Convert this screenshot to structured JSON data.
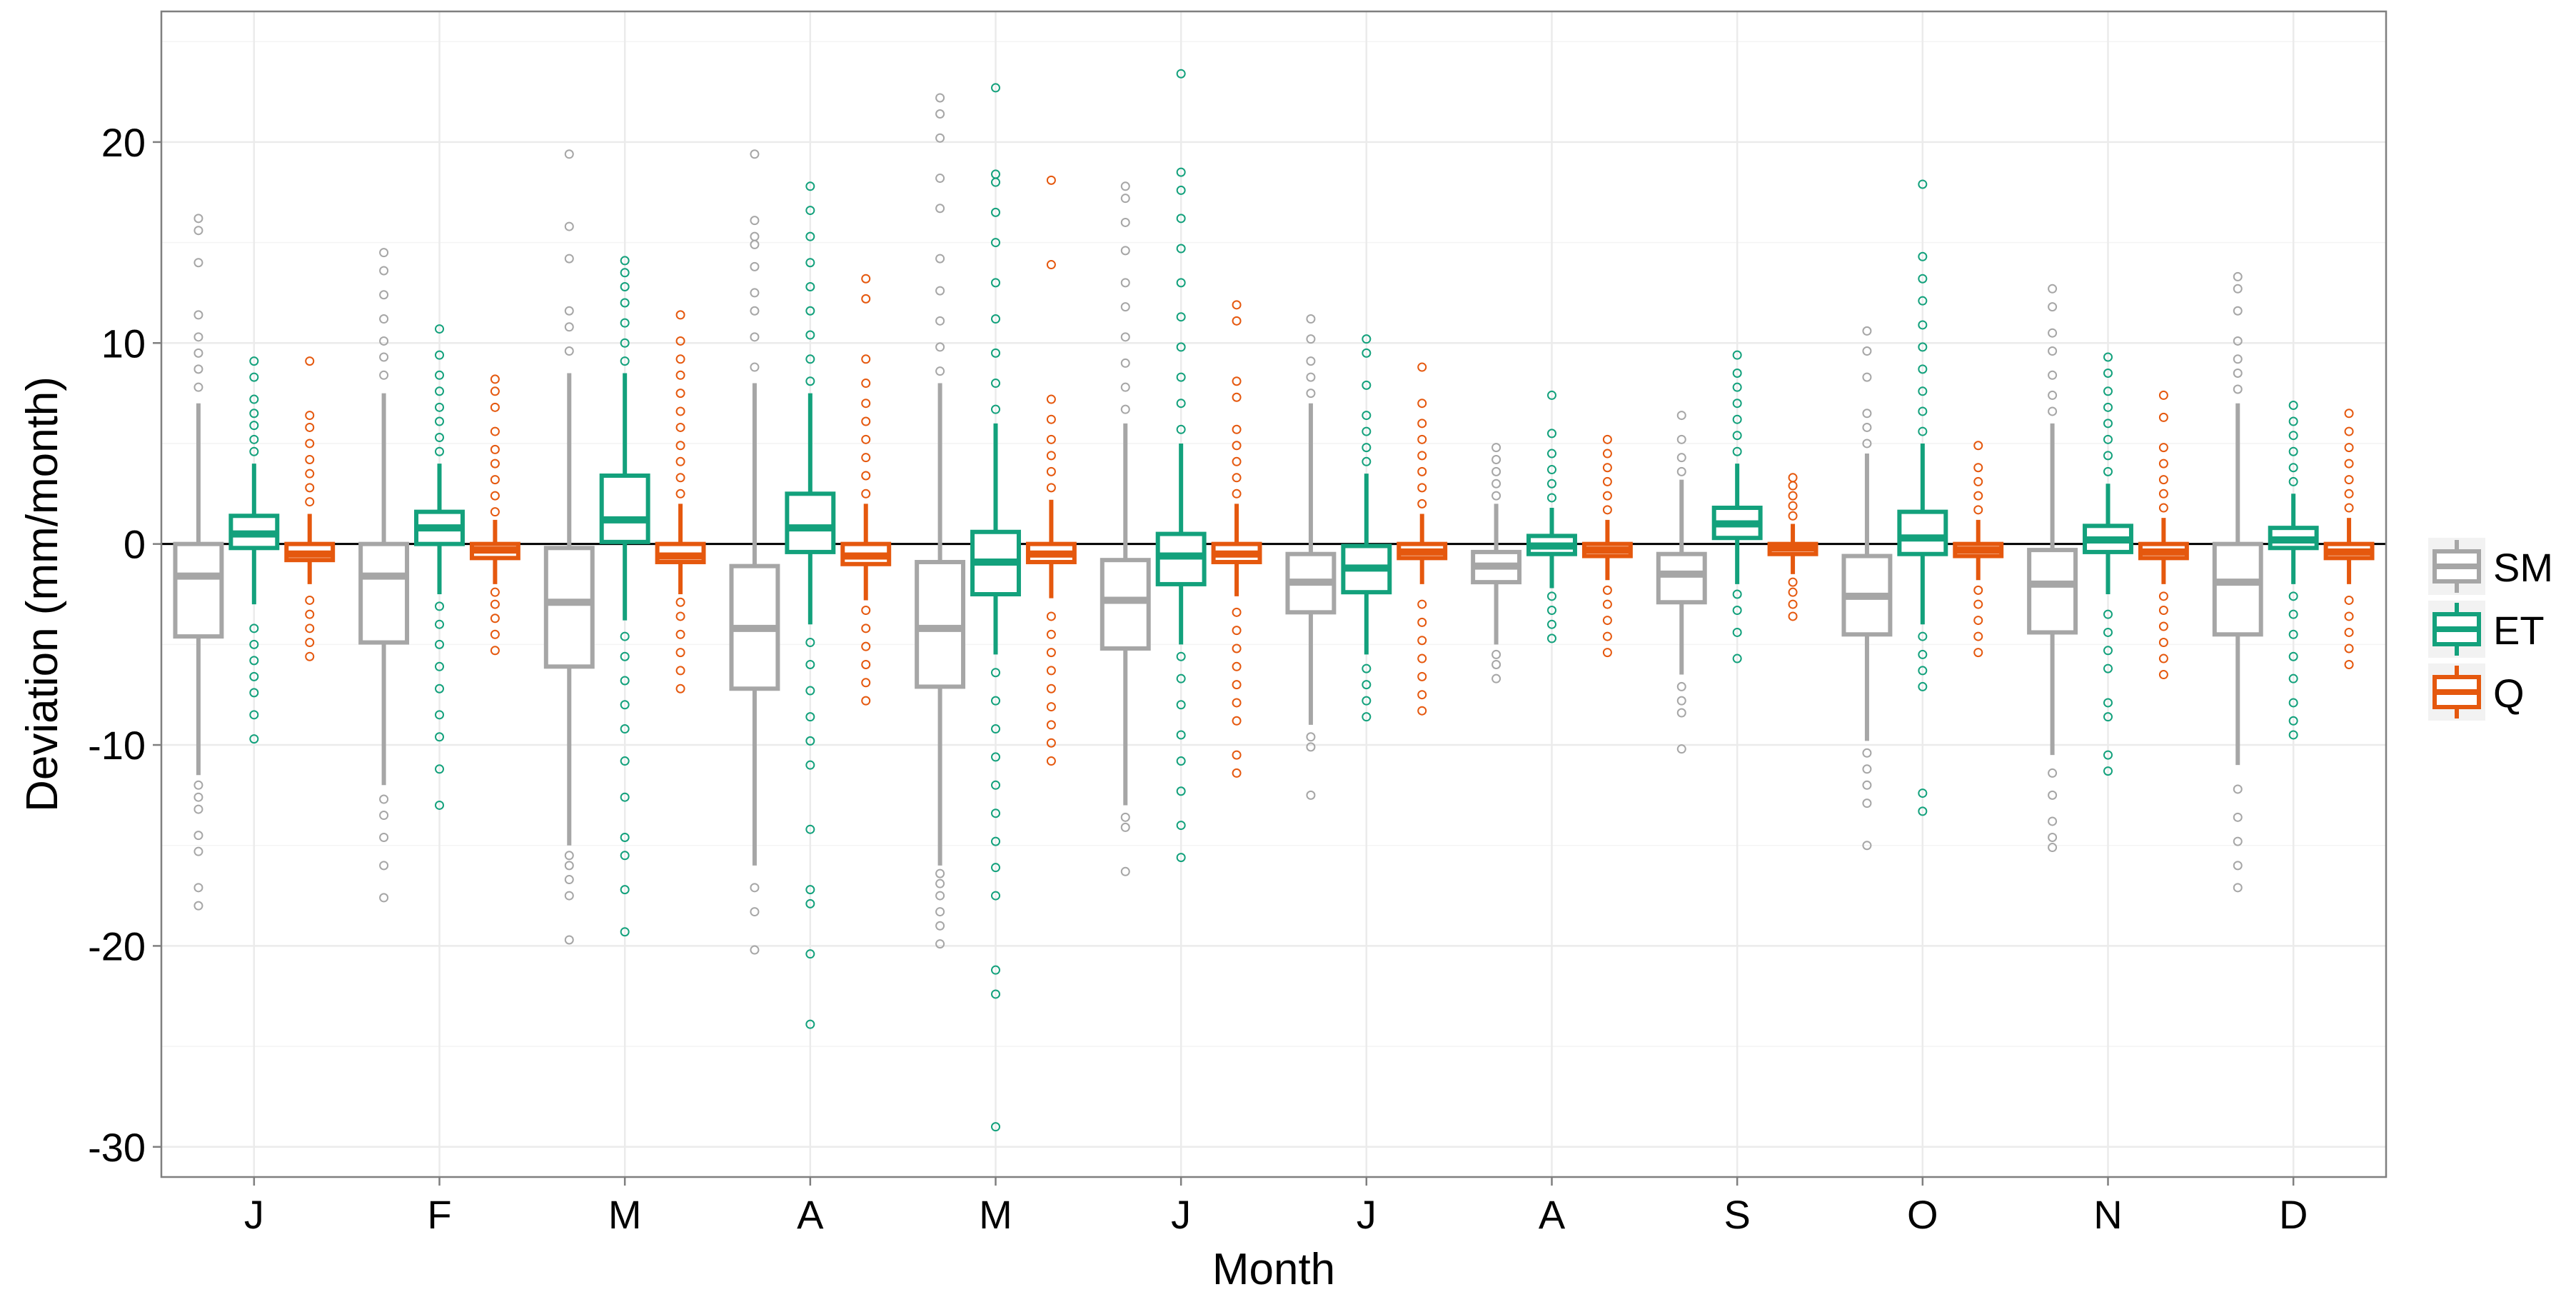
{
  "chart_data": {
    "type": "boxplot",
    "title": "",
    "xlabel": "Month",
    "ylabel": "Deviation (mm/month)",
    "ylim": [
      -31.5,
      26.5
    ],
    "yticks": [
      -30,
      -20,
      -10,
      0,
      10,
      20
    ],
    "ytick_labels": [
      "-30",
      "-20",
      "-10",
      "0",
      "10",
      "20"
    ],
    "grid": true,
    "reference_line_y": 0,
    "legend_position": "right",
    "categories": [
      "J",
      "F",
      "M",
      "A",
      "M",
      "J",
      "J",
      "A",
      "S",
      "O",
      "N",
      "D"
    ],
    "series": [
      {
        "name": "SM",
        "color": "#a6a6a6",
        "boxes": [
          {
            "q1": -4.6,
            "median": -1.6,
            "q3": 0.0,
            "whisker_low": -11.5,
            "whisker_high": 7.0,
            "outliers": [
              -18.0,
              -17.1,
              -15.3,
              -14.5,
              -13.2,
              -12.6,
              -12.0,
              7.8,
              8.7,
              9.5,
              10.3,
              11.4,
              14.0,
              15.6,
              16.2
            ]
          },
          {
            "q1": -4.9,
            "median": -1.6,
            "q3": 0.0,
            "whisker_low": -12.0,
            "whisker_high": 7.5,
            "outliers": [
              -17.6,
              -16.0,
              -14.6,
              -13.5,
              -12.7,
              8.4,
              9.3,
              10.1,
              11.2,
              12.4,
              13.6,
              14.5
            ]
          },
          {
            "q1": -6.1,
            "median": -2.9,
            "q3": -0.2,
            "whisker_low": -15.0,
            "whisker_high": 8.5,
            "outliers": [
              -19.7,
              -17.5,
              -16.7,
              -16.0,
              -15.5,
              9.6,
              10.8,
              11.6,
              14.2,
              15.8,
              19.4
            ]
          },
          {
            "q1": -7.2,
            "median": -4.2,
            "q3": -1.1,
            "whisker_low": -16.0,
            "whisker_high": 8.0,
            "outliers": [
              -20.2,
              -18.3,
              -17.1,
              8.8,
              10.3,
              11.6,
              12.5,
              13.8,
              14.9,
              15.3,
              16.1,
              19.4
            ]
          },
          {
            "q1": -7.1,
            "median": -4.2,
            "q3": -0.9,
            "whisker_low": -16.0,
            "whisker_high": 8.0,
            "outliers": [
              -19.9,
              -19.0,
              -18.3,
              -17.5,
              -16.9,
              -16.4,
              8.6,
              9.8,
              11.1,
              12.6,
              14.2,
              16.7,
              18.2,
              20.2,
              21.4,
              22.2
            ]
          },
          {
            "q1": -5.2,
            "median": -2.8,
            "q3": -0.8,
            "whisker_low": -13.0,
            "whisker_high": 6.0,
            "outliers": [
              -16.3,
              -14.1,
              -13.6,
              6.7,
              7.8,
              9.0,
              10.3,
              11.8,
              13.0,
              14.6,
              16.0,
              17.2,
              17.8
            ]
          },
          {
            "q1": -3.4,
            "median": -1.9,
            "q3": -0.5,
            "whisker_low": -9.0,
            "whisker_high": 7.0,
            "outliers": [
              -12.5,
              -10.1,
              -9.6,
              7.5,
              8.3,
              9.1,
              10.2,
              11.2
            ]
          },
          {
            "q1": -1.9,
            "median": -1.1,
            "q3": -0.4,
            "whisker_low": -5.0,
            "whisker_high": 2.0,
            "outliers": [
              -6.7,
              -6.0,
              -5.5,
              2.4,
              3.0,
              3.6,
              4.2,
              4.8
            ]
          },
          {
            "q1": -2.9,
            "median": -1.5,
            "q3": -0.5,
            "whisker_low": -6.5,
            "whisker_high": 3.2,
            "outliers": [
              -10.2,
              -8.4,
              -7.8,
              -7.1,
              3.6,
              4.3,
              5.2,
              6.4
            ]
          },
          {
            "q1": -4.5,
            "median": -2.6,
            "q3": -0.6,
            "whisker_low": -9.8,
            "whisker_high": 4.5,
            "outliers": [
              -15.0,
              -12.9,
              -12.0,
              -11.2,
              -10.4,
              5.0,
              5.8,
              6.5,
              8.3,
              9.6,
              10.6
            ]
          },
          {
            "q1": -4.4,
            "median": -2.0,
            "q3": -0.3,
            "whisker_low": -10.5,
            "whisker_high": 6.0,
            "outliers": [
              -15.1,
              -14.6,
              -13.8,
              -12.5,
              -11.4,
              6.6,
              7.4,
              8.4,
              9.6,
              10.5,
              11.8,
              12.7
            ]
          },
          {
            "q1": -4.5,
            "median": -1.9,
            "q3": 0.0,
            "whisker_low": -11.0,
            "whisker_high": 7.0,
            "outliers": [
              -17.1,
              -16.0,
              -14.8,
              -13.6,
              -12.2,
              7.7,
              8.5,
              9.2,
              10.1,
              11.6,
              12.7,
              13.3
            ]
          }
        ]
      },
      {
        "name": "ET",
        "color": "#13a17c",
        "boxes": [
          {
            "q1": -0.2,
            "median": 0.5,
            "q3": 1.4,
            "whisker_low": -3.0,
            "whisker_high": 4.0,
            "outliers": [
              -9.7,
              -8.5,
              -7.4,
              -6.6,
              -5.8,
              -5.0,
              -4.2,
              4.6,
              5.2,
              5.9,
              6.5,
              7.2,
              8.3,
              9.1
            ]
          },
          {
            "q1": 0.0,
            "median": 0.8,
            "q3": 1.6,
            "whisker_low": -2.5,
            "whisker_high": 4.0,
            "outliers": [
              -13.0,
              -11.2,
              -9.6,
              -8.5,
              -7.2,
              -6.1,
              -5.0,
              -4.0,
              -3.1,
              4.6,
              5.3,
              6.1,
              6.8,
              7.6,
              8.4,
              9.4,
              10.7
            ]
          },
          {
            "q1": 0.1,
            "median": 1.2,
            "q3": 3.4,
            "whisker_low": -3.8,
            "whisker_high": 8.5,
            "outliers": [
              -19.3,
              -17.2,
              -15.5,
              -14.6,
              -12.6,
              -10.8,
              -9.2,
              -8.0,
              -6.8,
              -5.6,
              -4.6,
              9.1,
              10.0,
              11.0,
              12.0,
              12.8,
              13.5,
              14.1
            ]
          },
          {
            "q1": -0.4,
            "median": 0.8,
            "q3": 2.5,
            "whisker_low": -4.0,
            "whisker_high": 7.5,
            "outliers": [
              -23.9,
              -20.4,
              -17.9,
              -17.2,
              -14.2,
              -11.0,
              -9.8,
              -8.6,
              -7.3,
              -6.0,
              -4.9,
              8.1,
              9.2,
              10.4,
              11.6,
              12.8,
              14.0,
              15.3,
              16.6,
              17.8
            ]
          },
          {
            "q1": -2.5,
            "median": -0.9,
            "q3": 0.6,
            "whisker_low": -5.5,
            "whisker_high": 6.0,
            "outliers": [
              -29.0,
              -22.4,
              -21.2,
              -17.5,
              -16.1,
              -14.8,
              -13.4,
              -12.0,
              -10.6,
              -9.2,
              -7.8,
              -6.4,
              6.7,
              8.0,
              9.5,
              11.2,
              13.0,
              15.0,
              16.5,
              18.0,
              18.4,
              22.7
            ]
          },
          {
            "q1": -2.0,
            "median": -0.6,
            "q3": 0.5,
            "whisker_low": -5.0,
            "whisker_high": 5.0,
            "outliers": [
              -15.6,
              -14.0,
              -12.3,
              -10.8,
              -9.5,
              -8.0,
              -6.7,
              -5.6,
              5.7,
              7.0,
              8.3,
              9.8,
              11.3,
              13.0,
              14.7,
              16.2,
              17.6,
              18.5,
              23.4
            ]
          },
          {
            "q1": -2.4,
            "median": -1.2,
            "q3": -0.1,
            "whisker_low": -5.5,
            "whisker_high": 3.5,
            "outliers": [
              -8.6,
              -7.8,
              -7.0,
              -6.2,
              4.1,
              4.8,
              5.6,
              6.4,
              7.9,
              9.5,
              10.2
            ]
          },
          {
            "q1": -0.5,
            "median": -0.1,
            "q3": 0.4,
            "whisker_low": -2.2,
            "whisker_high": 1.8,
            "outliers": [
              -4.7,
              -4.0,
              -3.3,
              -2.6,
              2.3,
              3.0,
              3.7,
              4.5,
              5.5,
              7.4
            ]
          },
          {
            "q1": 0.3,
            "median": 1.0,
            "q3": 1.8,
            "whisker_low": -2.0,
            "whisker_high": 4.0,
            "outliers": [
              -5.7,
              -4.4,
              -3.3,
              -2.5,
              4.6,
              5.4,
              6.2,
              7.0,
              7.8,
              8.5,
              9.4
            ]
          },
          {
            "q1": -0.5,
            "median": 0.3,
            "q3": 1.6,
            "whisker_low": -4.0,
            "whisker_high": 5.0,
            "outliers": [
              -13.3,
              -12.4,
              -7.1,
              -6.3,
              -5.5,
              -4.6,
              5.6,
              6.6,
              7.6,
              8.7,
              9.8,
              10.9,
              12.1,
              13.2,
              14.3,
              17.9
            ]
          },
          {
            "q1": -0.4,
            "median": 0.2,
            "q3": 0.9,
            "whisker_low": -2.5,
            "whisker_high": 3.0,
            "outliers": [
              -11.3,
              -10.5,
              -8.6,
              -7.9,
              -6.2,
              -5.3,
              -4.4,
              -3.5,
              3.6,
              4.4,
              5.2,
              6.0,
              6.8,
              7.6,
              8.5,
              9.3
            ]
          },
          {
            "q1": -0.2,
            "median": 0.2,
            "q3": 0.8,
            "whisker_low": -2.0,
            "whisker_high": 2.5,
            "outliers": [
              -9.5,
              -8.8,
              -7.9,
              -6.7,
              -5.6,
              -4.5,
              -3.5,
              -2.6,
              3.1,
              3.8,
              4.6,
              5.4,
              6.1,
              6.9
            ]
          }
        ]
      },
      {
        "name": "Q",
        "color": "#e5580e",
        "boxes": [
          {
            "q1": -0.8,
            "median": -0.5,
            "q3": 0.0,
            "whisker_low": -2.0,
            "whisker_high": 1.5,
            "outliers": [
              -5.6,
              -4.9,
              -4.2,
              -3.5,
              -2.8,
              2.1,
              2.8,
              3.5,
              4.2,
              5.0,
              5.8,
              6.4,
              9.1
            ]
          },
          {
            "q1": -0.7,
            "median": -0.3,
            "q3": 0.0,
            "whisker_low": -2.0,
            "whisker_high": 1.2,
            "outliers": [
              -5.3,
              -4.5,
              -3.7,
              -3.0,
              -2.4,
              1.6,
              2.4,
              3.2,
              4.0,
              4.7,
              5.6,
              6.8,
              7.6,
              8.2
            ]
          },
          {
            "q1": -0.9,
            "median": -0.6,
            "q3": 0.0,
            "whisker_low": -2.5,
            "whisker_high": 2.0,
            "outliers": [
              -7.2,
              -6.3,
              -5.4,
              -4.5,
              -3.6,
              -2.9,
              2.5,
              3.3,
              4.1,
              4.9,
              5.8,
              6.6,
              7.5,
              8.4,
              9.2,
              10.1,
              11.4
            ]
          },
          {
            "q1": -1.0,
            "median": -0.6,
            "q3": 0.0,
            "whisker_low": -2.8,
            "whisker_high": 2.0,
            "outliers": [
              -7.8,
              -6.9,
              -6.0,
              -5.1,
              -4.2,
              -3.3,
              2.5,
              3.4,
              4.3,
              5.2,
              6.1,
              7.0,
              8.0,
              9.2,
              12.2,
              13.2
            ]
          },
          {
            "q1": -0.9,
            "median": -0.5,
            "q3": 0.0,
            "whisker_low": -2.7,
            "whisker_high": 2.2,
            "outliers": [
              -10.8,
              -9.9,
              -9.0,
              -8.1,
              -7.2,
              -6.3,
              -5.4,
              -4.5,
              -3.6,
              2.8,
              3.6,
              4.4,
              5.2,
              6.2,
              7.2,
              13.9,
              18.1
            ]
          },
          {
            "q1": -0.9,
            "median": -0.5,
            "q3": 0.0,
            "whisker_low": -2.6,
            "whisker_high": 2.0,
            "outliers": [
              -11.4,
              -10.5,
              -8.8,
              -7.9,
              -7.0,
              -6.1,
              -5.2,
              -4.3,
              -3.4,
              2.5,
              3.3,
              4.1,
              4.9,
              5.7,
              7.3,
              8.1,
              11.1,
              11.9
            ]
          },
          {
            "q1": -0.7,
            "median": -0.4,
            "q3": 0.0,
            "whisker_low": -2.0,
            "whisker_high": 1.5,
            "outliers": [
              -8.3,
              -7.5,
              -6.6,
              -5.7,
              -4.8,
              -3.9,
              -3.0,
              2.0,
              2.8,
              3.6,
              4.4,
              5.2,
              6.0,
              7.0,
              8.8
            ]
          },
          {
            "q1": -0.6,
            "median": -0.3,
            "q3": 0.0,
            "whisker_low": -1.8,
            "whisker_high": 1.2,
            "outliers": [
              -5.4,
              -4.6,
              -3.8,
              -3.0,
              -2.3,
              1.7,
              2.4,
              3.1,
              3.8,
              4.5,
              5.2
            ]
          },
          {
            "q1": -0.5,
            "median": -0.2,
            "q3": 0.0,
            "whisker_low": -1.5,
            "whisker_high": 1.0,
            "outliers": [
              -3.6,
              -3.0,
              -2.4,
              -1.9,
              1.4,
              1.9,
              2.4,
              2.9,
              3.3
            ]
          },
          {
            "q1": -0.6,
            "median": -0.3,
            "q3": 0.0,
            "whisker_low": -1.8,
            "whisker_high": 1.2,
            "outliers": [
              -5.4,
              -4.6,
              -3.8,
              -3.0,
              -2.3,
              1.7,
              2.4,
              3.1,
              3.8,
              4.9
            ]
          },
          {
            "q1": -0.7,
            "median": -0.4,
            "q3": 0.0,
            "whisker_low": -2.0,
            "whisker_high": 1.3,
            "outliers": [
              -6.5,
              -5.7,
              -4.9,
              -4.1,
              -3.3,
              -2.6,
              1.8,
              2.5,
              3.2,
              4.0,
              4.8,
              6.3,
              7.4
            ]
          },
          {
            "q1": -0.7,
            "median": -0.4,
            "q3": 0.0,
            "whisker_low": -2.0,
            "whisker_high": 1.3,
            "outliers": [
              -6.0,
              -5.2,
              -4.4,
              -3.6,
              -2.8,
              1.8,
              2.5,
              3.2,
              4.0,
              4.8,
              5.6,
              6.5
            ]
          }
        ]
      }
    ]
  }
}
